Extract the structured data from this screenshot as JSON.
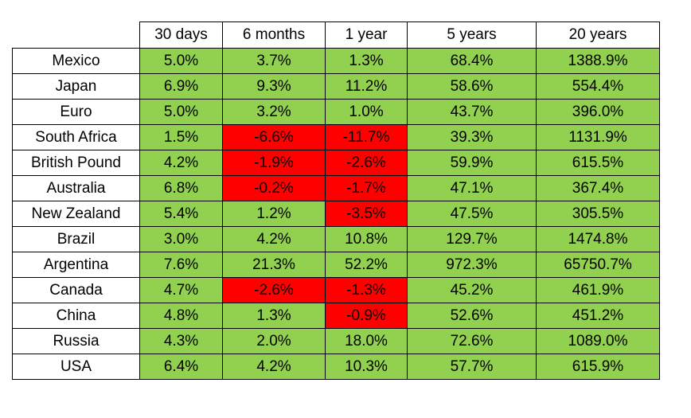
{
  "table": {
    "header": [
      "30 days",
      "6 months",
      "1 year",
      "5 years",
      "20 years"
    ],
    "colors": {
      "positive": "#92d050",
      "negative": "#ff0000"
    },
    "rows": [
      {
        "label": "Mexico",
        "values": [
          "5.0%",
          "3.7%",
          "1.3%",
          "68.4%",
          "1388.9%"
        ]
      },
      {
        "label": "Japan",
        "values": [
          "6.9%",
          "9.3%",
          "11.2%",
          "58.6%",
          "554.4%"
        ]
      },
      {
        "label": "Euro",
        "values": [
          "5.0%",
          "3.2%",
          "1.0%",
          "43.7%",
          "396.0%"
        ]
      },
      {
        "label": "South Africa",
        "values": [
          "1.5%",
          "-6.6%",
          "-11.7%",
          "39.3%",
          "1131.9%"
        ]
      },
      {
        "label": "British Pound",
        "values": [
          "4.2%",
          "-1.9%",
          "-2.6%",
          "59.9%",
          "615.5%"
        ]
      },
      {
        "label": "Australia",
        "values": [
          "6.8%",
          "-0.2%",
          "-1.7%",
          "47.1%",
          "367.4%"
        ]
      },
      {
        "label": "New Zealand",
        "values": [
          "5.4%",
          "1.2%",
          "-3.5%",
          "47.5%",
          "305.5%"
        ]
      },
      {
        "label": "Brazil",
        "values": [
          "3.0%",
          "4.2%",
          "10.8%",
          "129.7%",
          "1474.8%"
        ]
      },
      {
        "label": "Argentina",
        "values": [
          "7.6%",
          "21.3%",
          "52.2%",
          "972.3%",
          "65750.7%"
        ]
      },
      {
        "label": "Canada",
        "values": [
          "4.7%",
          "-2.6%",
          "-1.3%",
          "45.2%",
          "461.9%"
        ]
      },
      {
        "label": "China",
        "values": [
          "4.8%",
          "1.3%",
          "-0.9%",
          "52.6%",
          "451.2%"
        ]
      },
      {
        "label": "Russia",
        "values": [
          "4.3%",
          "2.0%",
          "18.0%",
          "72.6%",
          "1089.0%"
        ]
      },
      {
        "label": "USA",
        "values": [
          "6.4%",
          "4.2%",
          "10.3%",
          "57.7%",
          "615.9%"
        ]
      }
    ]
  }
}
